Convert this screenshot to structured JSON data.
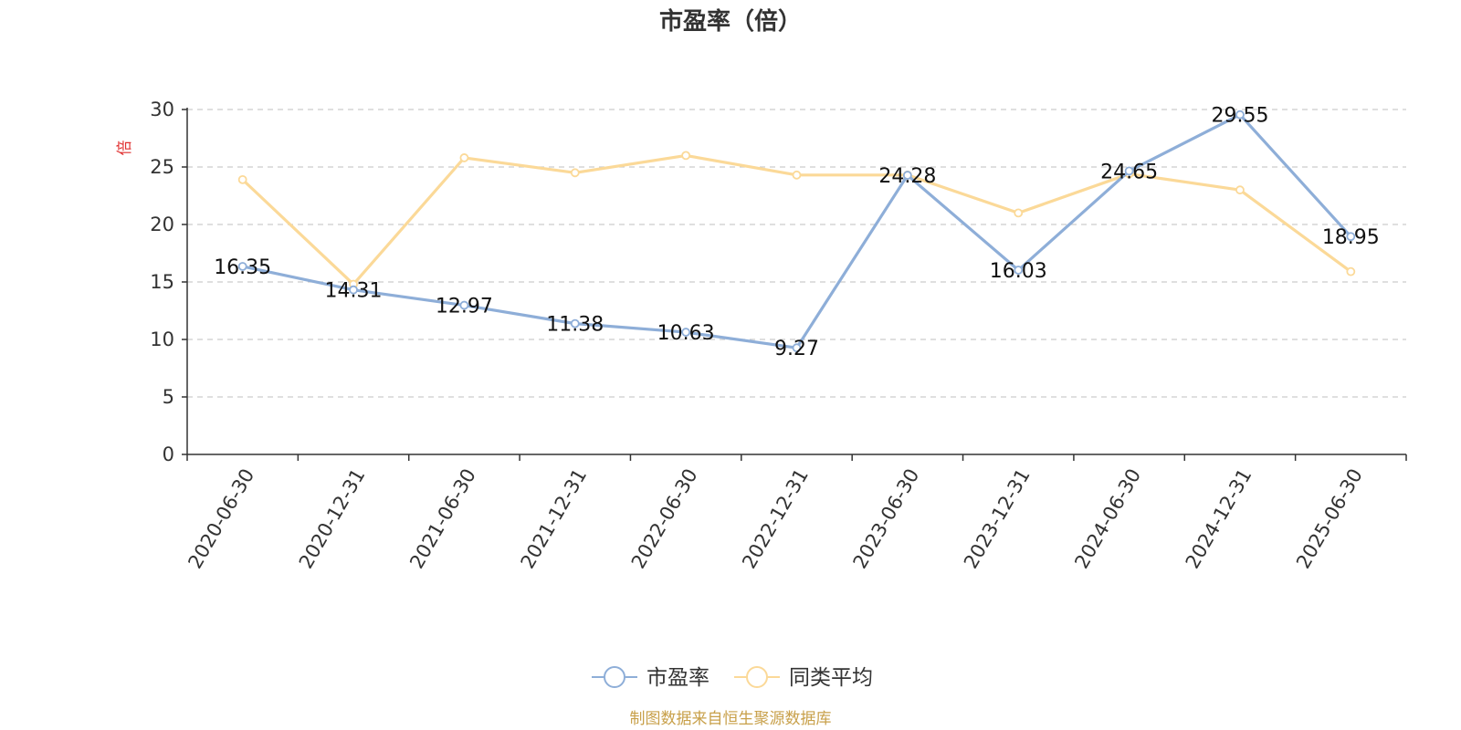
{
  "chart_data": {
    "type": "line",
    "title": "市盈率（倍）",
    "ylabel": "倍",
    "ylim": [
      0,
      30
    ],
    "yticks": [
      0,
      5,
      10,
      15,
      20,
      25,
      30
    ],
    "grid": true,
    "legend_position": "bottom",
    "categories": [
      "2020-06-30",
      "2020-12-31",
      "2021-06-30",
      "2021-12-31",
      "2022-06-30",
      "2022-12-31",
      "2023-06-30",
      "2023-12-31",
      "2024-06-30",
      "2024-12-31",
      "2025-06-30"
    ],
    "series": [
      {
        "name": "市盈率",
        "color": "#8eaed8",
        "values": [
          16.35,
          14.31,
          12.97,
          11.38,
          10.63,
          9.27,
          24.28,
          16.03,
          24.65,
          29.55,
          18.95
        ],
        "labels": [
          "16.35",
          "14.31",
          "12.97",
          "11.38",
          "10.63",
          "9.27",
          "24.28",
          "16.03",
          "24.65",
          "29.55",
          "18.95"
        ]
      },
      {
        "name": "同类平均",
        "color": "#fbd998",
        "values": [
          23.9,
          14.8,
          25.8,
          24.5,
          26.0,
          24.3,
          24.3,
          21.0,
          24.4,
          23.0,
          15.9
        ]
      }
    ]
  },
  "source": "制图数据来自恒生聚源数据库",
  "colors": {
    "unit": "#e03030",
    "source": "#c8a04a",
    "axis": "#333333",
    "grid": "#cccccc"
  }
}
